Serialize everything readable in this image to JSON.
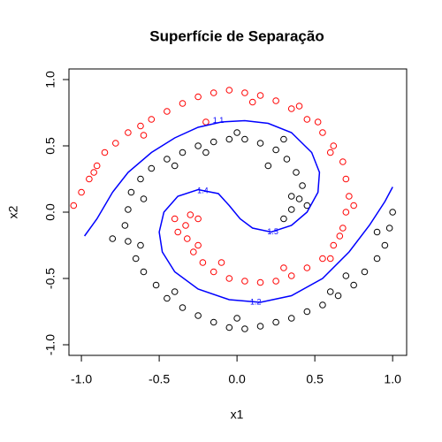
{
  "chart_data": {
    "type": "scatter",
    "title": "Superfície de Separação",
    "xlabel": "x1",
    "ylabel": "x2",
    "xlim": [
      -1.08,
      1.09
    ],
    "ylim": [
      -1.08,
      1.08
    ],
    "xticks": [
      {
        "value": -1,
        "label": "-1.0"
      },
      {
        "value": -0.5,
        "label": "-0.5"
      },
      {
        "value": 0,
        "label": "0.0"
      },
      {
        "value": 0.5,
        "label": "0.5"
      },
      {
        "value": 1,
        "label": "1.0"
      }
    ],
    "yticks": [
      {
        "value": -1,
        "label": "-1.0"
      },
      {
        "value": -0.5,
        "label": "-0.5"
      },
      {
        "value": 0,
        "label": "0.0"
      },
      {
        "value": 0.5,
        "label": "0.5"
      },
      {
        "value": 1,
        "label": "1.0"
      }
    ],
    "series": [
      {
        "color": "#ff0000",
        "x": [
          -1.05,
          -1.0,
          -0.95,
          -0.9,
          -0.85,
          -0.78,
          -0.7,
          -0.62,
          -0.55,
          -0.45,
          -0.35,
          -0.25,
          -0.15,
          -0.05,
          0.05,
          0.15,
          0.25,
          0.35,
          0.45,
          0.55,
          0.62,
          0.68,
          0.7,
          0.72,
          0.7,
          0.68,
          0.62,
          0.55,
          0.45,
          0.35,
          0.25,
          0.15,
          0.05,
          -0.05,
          -0.15,
          -0.22,
          -0.28,
          -0.32,
          -0.33,
          -0.3,
          -0.25,
          -0.38,
          -0.92,
          -0.6,
          0.1,
          0.4,
          0.6,
          0.75,
          0.6,
          0.3,
          -0.1,
          -0.25,
          -0.4,
          -0.2,
          0.52,
          0.66
        ],
        "y": [
          0.05,
          0.15,
          0.25,
          0.35,
          0.45,
          0.52,
          0.6,
          0.65,
          0.7,
          0.76,
          0.82,
          0.87,
          0.9,
          0.92,
          0.9,
          0.88,
          0.84,
          0.78,
          0.7,
          0.6,
          0.5,
          0.38,
          0.25,
          0.12,
          0,
          -0.12,
          -0.25,
          -0.35,
          -0.42,
          -0.48,
          -0.52,
          -0.53,
          -0.52,
          -0.5,
          -0.45,
          -0.38,
          -0.3,
          -0.2,
          -0.1,
          -0.02,
          -0.05,
          -0.15,
          0.3,
          0.58,
          0.83,
          0.8,
          0.45,
          0.05,
          -0.35,
          -0.42,
          -0.38,
          -0.25,
          -0.05,
          0.68,
          0.68,
          -0.18
        ]
      },
      {
        "color": "#000000",
        "x": [
          1.0,
          0.98,
          0.95,
          0.9,
          0.82,
          0.75,
          0.65,
          0.55,
          0.45,
          0.35,
          0.25,
          0.15,
          0.05,
          -0.05,
          -0.15,
          -0.25,
          -0.35,
          -0.45,
          -0.52,
          -0.6,
          -0.65,
          -0.7,
          -0.72,
          -0.7,
          -0.68,
          -0.62,
          -0.55,
          -0.45,
          -0.35,
          -0.25,
          -0.15,
          -0.05,
          0.05,
          0.15,
          0.25,
          0.32,
          0.38,
          0.42,
          0.4,
          0.35,
          0.3,
          0.35,
          0.45,
          0.9,
          0.6,
          0.0,
          -0.4,
          -0.62,
          -0.6,
          -0.4,
          0.0,
          0.3,
          -0.2,
          0.2,
          0.7,
          -0.8
        ],
        "y": [
          0.0,
          -0.12,
          -0.25,
          -0.35,
          -0.45,
          -0.55,
          -0.63,
          -0.7,
          -0.75,
          -0.8,
          -0.83,
          -0.86,
          -0.88,
          -0.87,
          -0.83,
          -0.78,
          -0.72,
          -0.65,
          -0.55,
          -0.45,
          -0.35,
          -0.22,
          -0.1,
          0.02,
          0.15,
          0.25,
          0.33,
          0.4,
          0.45,
          0.5,
          0.53,
          0.55,
          0.55,
          0.52,
          0.47,
          0.4,
          0.3,
          0.2,
          0.1,
          0.02,
          -0.05,
          0.12,
          0.05,
          -0.15,
          -0.6,
          -0.8,
          -0.6,
          -0.25,
          0.1,
          0.35,
          0.6,
          0.55,
          0.45,
          0.35,
          -0.48,
          -0.2
        ]
      }
    ],
    "contour": {
      "color": "#0000ff",
      "x": [
        -0.98,
        -0.9,
        -0.8,
        -0.7,
        -0.55,
        -0.4,
        -0.25,
        -0.1,
        0.05,
        0.2,
        0.35,
        0.48,
        0.53,
        0.52,
        0.45,
        0.35,
        0.22,
        0.1,
        0.02,
        -0.05,
        -0.12,
        -0.25,
        -0.38,
        -0.47,
        -0.5,
        -0.48,
        -0.4,
        -0.25,
        -0.05,
        0.15,
        0.35,
        0.55,
        0.72,
        0.85,
        0.95,
        1.0
      ],
      "y": [
        -0.18,
        -0.05,
        0.15,
        0.3,
        0.45,
        0.56,
        0.64,
        0.68,
        0.69,
        0.67,
        0.6,
        0.45,
        0.3,
        0.15,
        0.0,
        -0.1,
        -0.15,
        -0.12,
        -0.05,
        0.05,
        0.14,
        0.17,
        0.12,
        0.0,
        -0.15,
        -0.3,
        -0.45,
        -0.58,
        -0.66,
        -0.68,
        -0.63,
        -0.5,
        -0.3,
        -0.1,
        0.08,
        0.19
      ]
    },
    "annotations": [
      {
        "text": "1.1",
        "x": -0.12,
        "y": 0.69
      },
      {
        "text": "1.4",
        "x": -0.22,
        "y": 0.16
      },
      {
        "text": "1.5",
        "x": 0.23,
        "y": -0.15
      },
      {
        "text": "1.2",
        "x": 0.12,
        "y": -0.68
      }
    ]
  }
}
